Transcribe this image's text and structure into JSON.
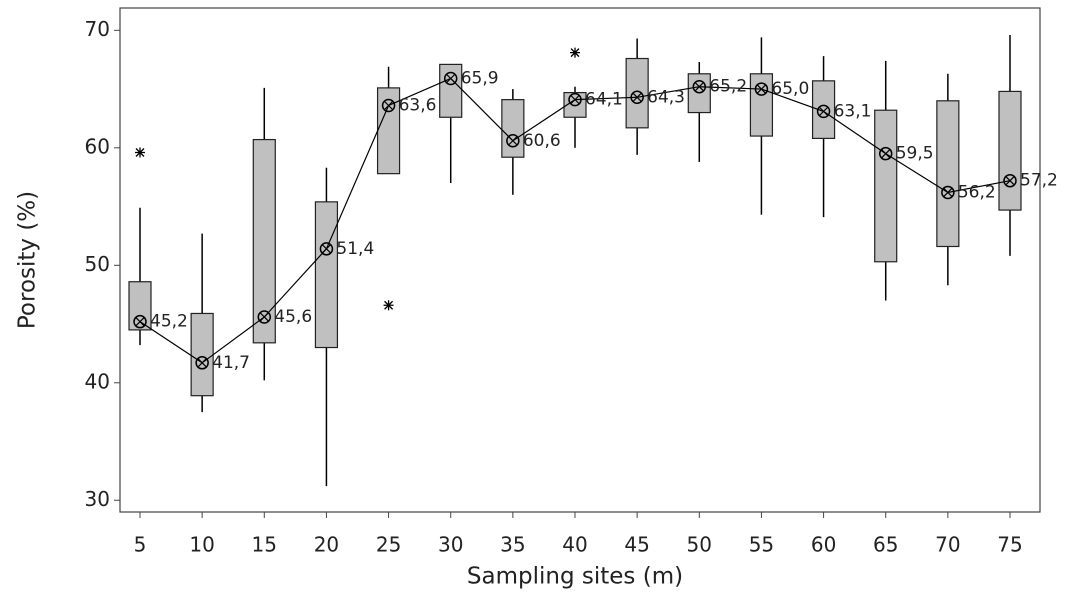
{
  "chart_data": {
    "type": "boxplot",
    "x_label": "Sampling sites (m)",
    "y_label": "Porosity (%)",
    "categories": [
      "5",
      "10",
      "15",
      "20",
      "25",
      "30",
      "35",
      "40",
      "45",
      "50",
      "55",
      "60",
      "65",
      "70",
      "75"
    ],
    "whisker_low": [
      43.2,
      37.5,
      40.2,
      31.2,
      57.8,
      57.0,
      56.0,
      60.0,
      59.4,
      58.8,
      54.3,
      54.1,
      47.0,
      48.3,
      50.8
    ],
    "q1": [
      44.5,
      38.9,
      43.4,
      43.0,
      57.8,
      62.6,
      59.2,
      62.6,
      61.7,
      63.0,
      61.0,
      60.8,
      50.3,
      51.6,
      54.7
    ],
    "q3": [
      48.6,
      45.9,
      60.7,
      55.4,
      65.1,
      67.1,
      64.1,
      64.7,
      67.6,
      66.3,
      66.3,
      65.7,
      63.2,
      64.0,
      64.8
    ],
    "whisker_high": [
      54.9,
      52.7,
      65.1,
      58.3,
      66.9,
      66.9,
      65.0,
      65.2,
      69.3,
      67.3,
      69.4,
      67.8,
      67.4,
      66.3,
      69.6
    ],
    "mean": [
      45.2,
      41.7,
      45.6,
      51.4,
      63.6,
      65.9,
      60.6,
      64.1,
      64.3,
      65.2,
      65.0,
      63.1,
      59.5,
      56.2,
      57.2
    ],
    "value_labels": [
      "45,2",
      "41,7",
      "45,6",
      "51,4",
      "63,6",
      "65,9",
      "60,6",
      "64,1",
      "64,3",
      "65,2",
      "65,0",
      "63,1",
      "59,5",
      "56,2",
      "57,2"
    ],
    "outliers": [
      [
        59.6
      ],
      [],
      [],
      [],
      [
        46.6
      ],
      [],
      [],
      [
        68.1
      ],
      [],
      [],
      [],
      [],
      [],
      [],
      []
    ],
    "box_color": "#c0c0c0",
    "line_color": "#000000",
    "ylim": [
      29,
      71.9
    ],
    "yticks": [
      30,
      40,
      50,
      60,
      70
    ],
    "grid": false
  }
}
